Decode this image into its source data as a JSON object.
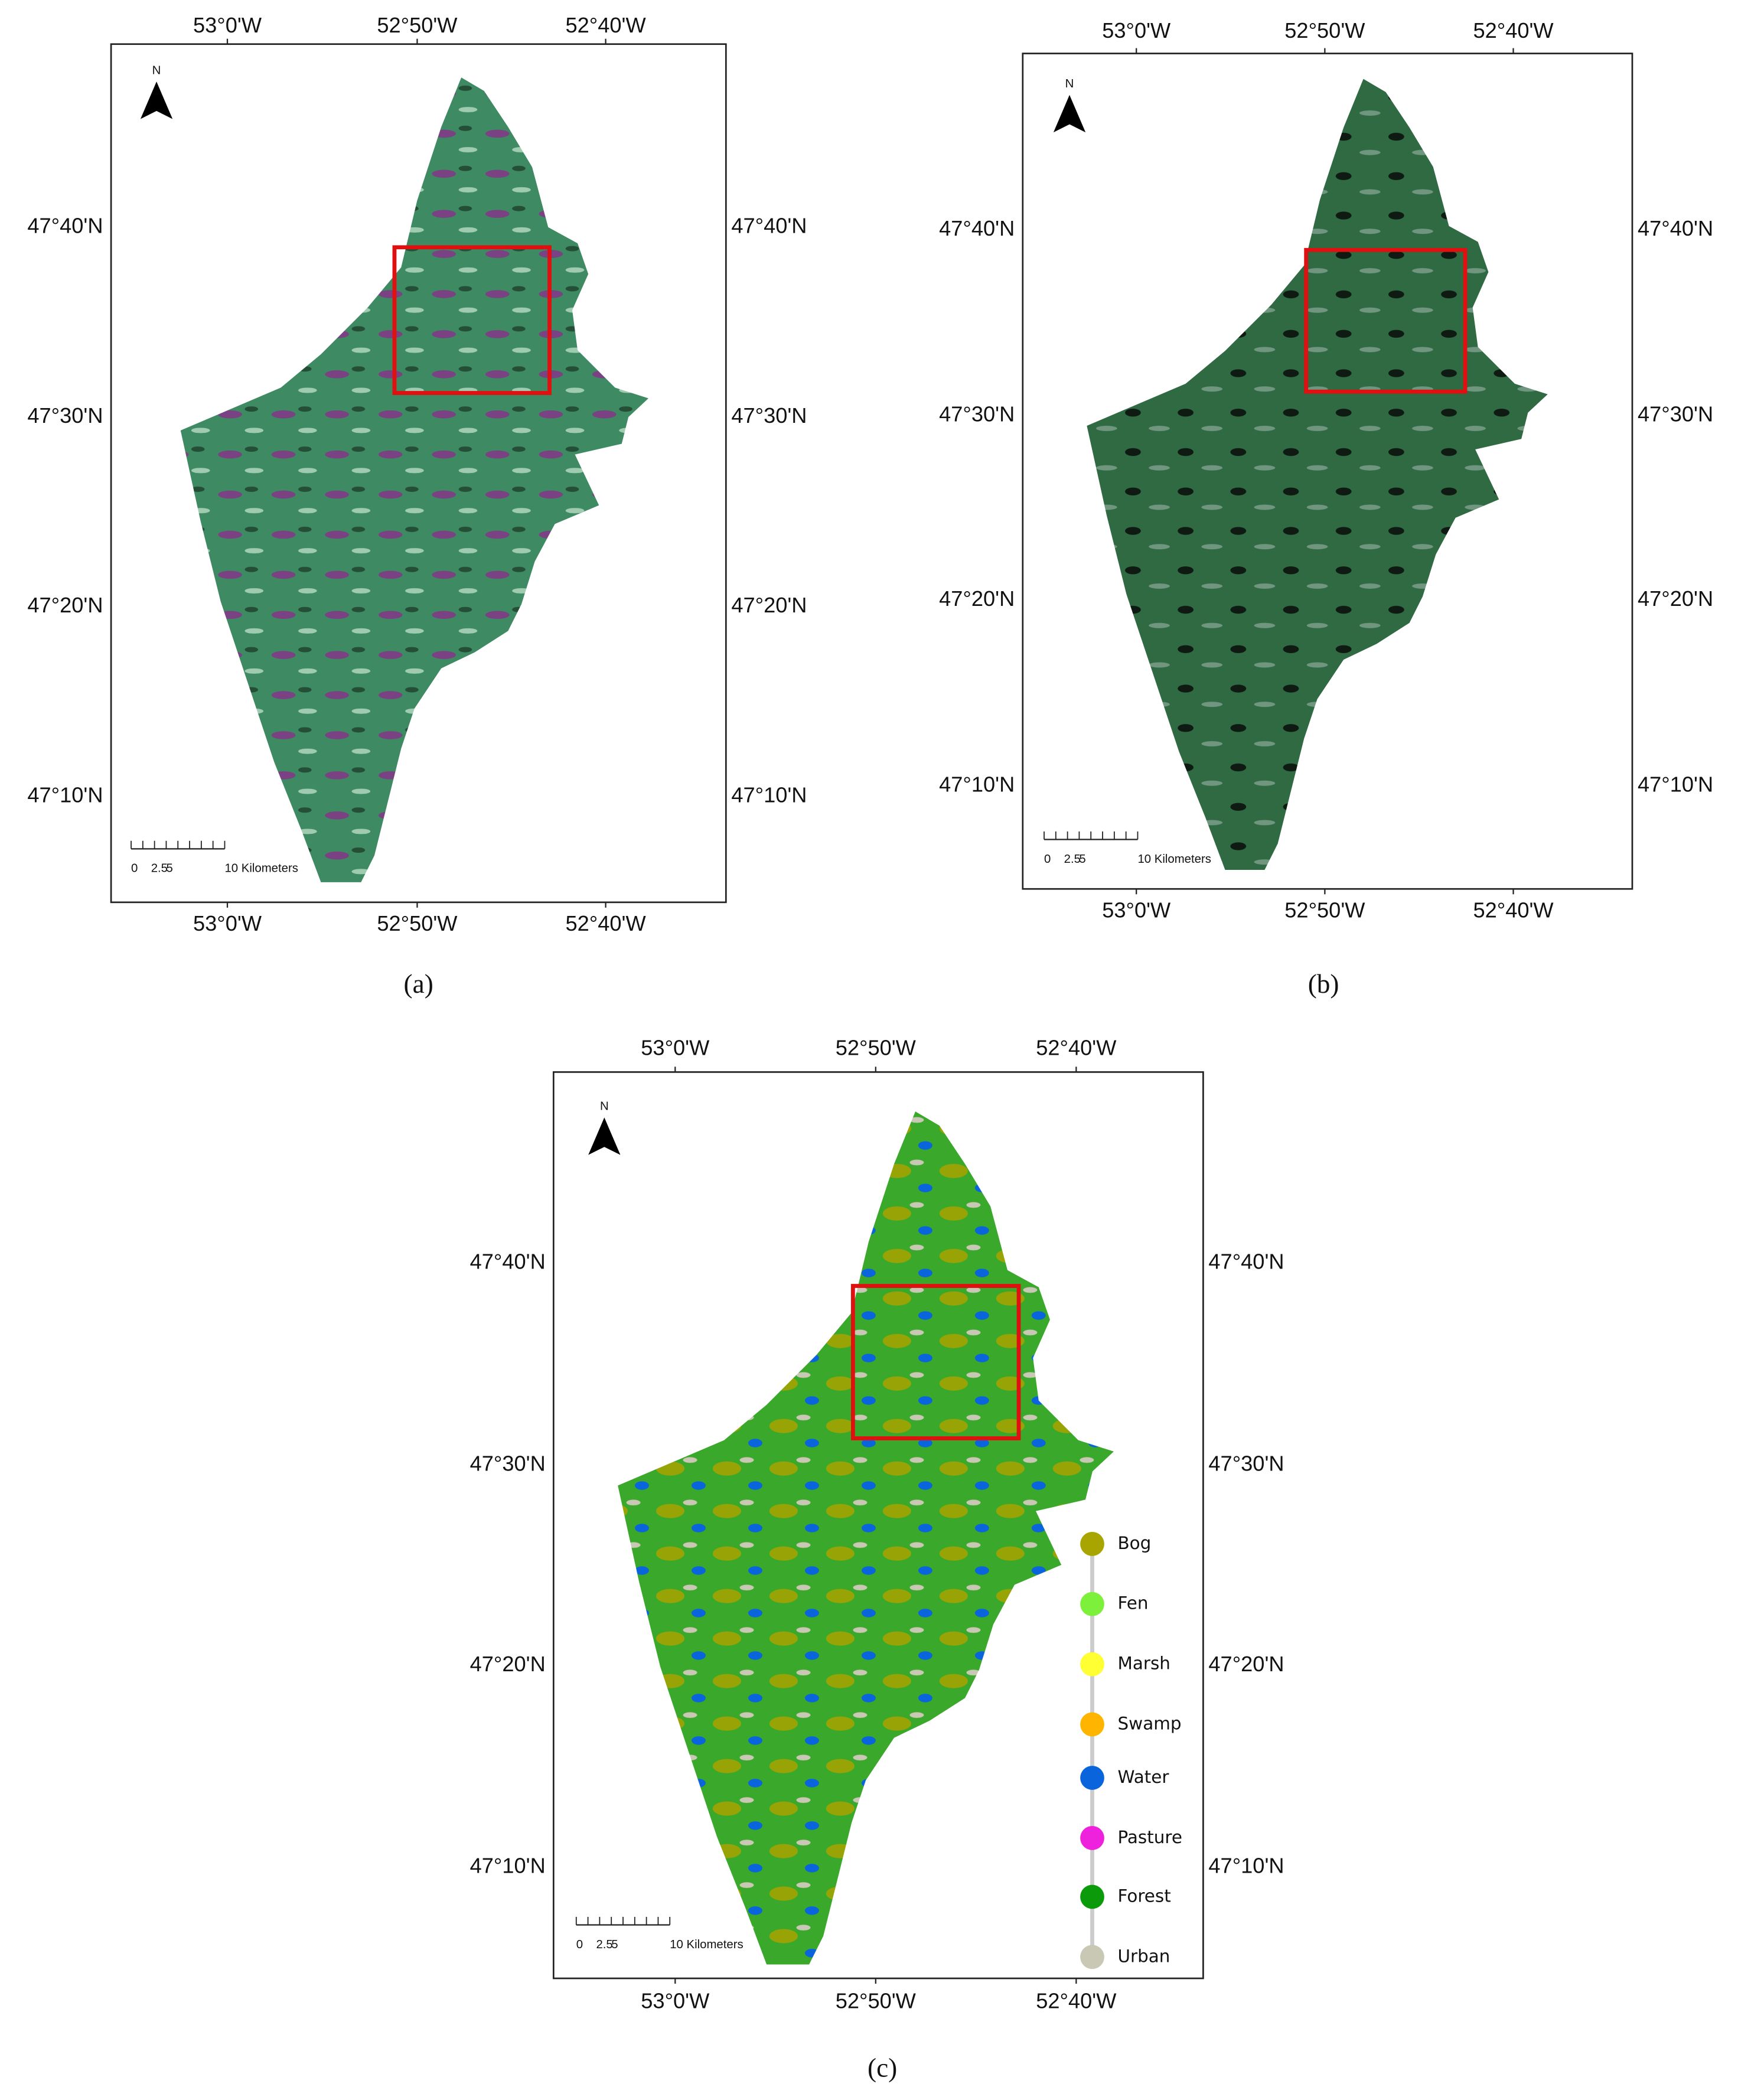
{
  "panels": [
    {
      "label": "(a)",
      "north": "N",
      "top_labels": [
        "53°0'W",
        "52°50'W",
        "52°40'W"
      ],
      "bottom_labels": [
        "53°0'W",
        "52°50'W",
        "52°40'W"
      ],
      "left_labels": [
        "47°40'N",
        "47°30'N",
        "47°20'N",
        "47°10'N"
      ],
      "right_labels": [
        "47°40'N",
        "47°30'N",
        "47°20'N",
        "47°10'N"
      ],
      "scale_bar": [
        "0",
        "2.5",
        "5",
        "10 Kilometers"
      ]
    },
    {
      "label": "(b)",
      "north": "N",
      "top_labels": [
        "53°0'W",
        "52°50'W",
        "52°40'W"
      ],
      "bottom_labels": [
        "53°0'W",
        "52°50'W",
        "52°40'W"
      ],
      "left_labels": [
        "47°40'N",
        "47°30'N",
        "47°20'N",
        "47°10'N"
      ],
      "right_labels": [
        "47°40'N",
        "47°30'N",
        "47°20'N",
        "47°10'N"
      ],
      "scale_bar": [
        "0",
        "2.5",
        "5",
        "10 Kilometers"
      ]
    },
    {
      "label": "(c)",
      "north": "N",
      "top_labels": [
        "53°0'W",
        "52°50'W",
        "52°40'W"
      ],
      "bottom_labels": [
        "53°0'W",
        "52°50'W",
        "52°40'W"
      ],
      "left_labels": [
        "47°40'N",
        "47°30'N",
        "47°20'N",
        "47°10'N"
      ],
      "right_labels": [
        "47°40'N",
        "47°30'N",
        "47°20'N",
        "47°10'N"
      ],
      "scale_bar": [
        "0",
        "2.5",
        "5",
        "10 Kilometers"
      ]
    }
  ],
  "legend": [
    {
      "name": "Bog",
      "color": "#a8a400"
    },
    {
      "name": "Fen",
      "color": "#7cf03a"
    },
    {
      "name": "Marsh",
      "color": "#ffff33"
    },
    {
      "name": "Swamp",
      "color": "#ffb400"
    },
    {
      "name": "Water",
      "color": "#0a64dc"
    },
    {
      "name": "Pasture",
      "color": "#ee22dd"
    },
    {
      "name": "Forest",
      "color": "#0a9a0a"
    },
    {
      "name": "Urban",
      "color": "#c8c8b4"
    }
  ]
}
